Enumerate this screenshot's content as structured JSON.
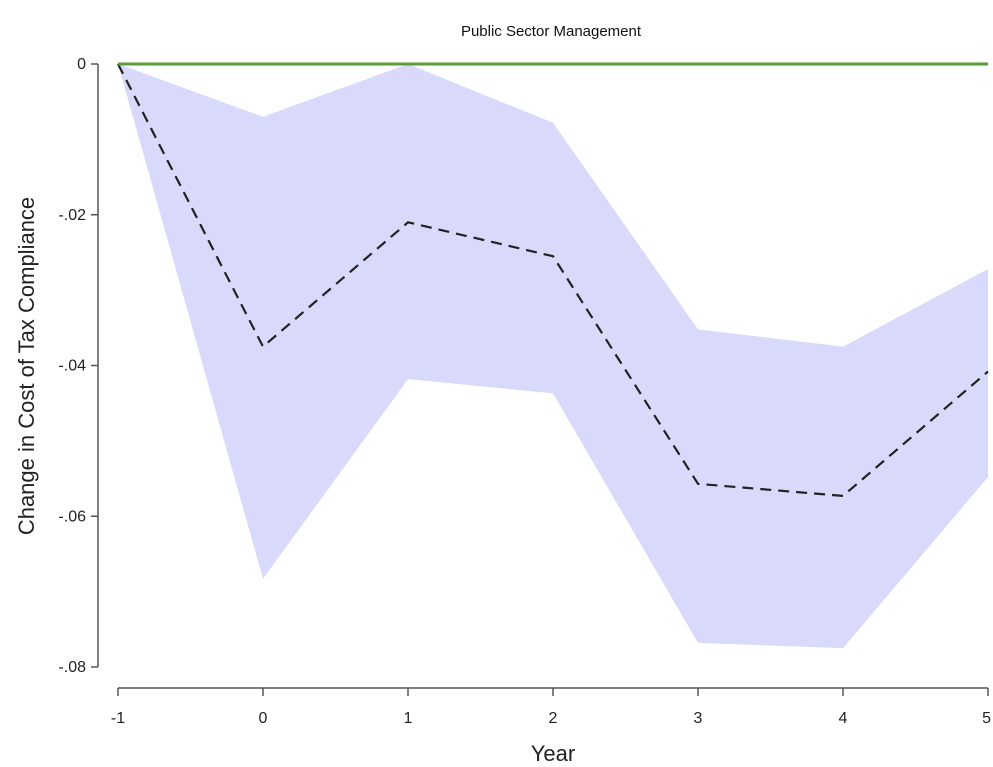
{
  "chart_data": {
    "type": "line",
    "title": "Public Sector Management",
    "xlabel": "Year",
    "ylabel": "Change in Cost of Tax Compliance",
    "x": [
      -1,
      0,
      1,
      2,
      3,
      4,
      5
    ],
    "xlim": [
      -1,
      5
    ],
    "ylim": [
      -0.08,
      0
    ],
    "x_ticks": [
      -1,
      0,
      1,
      2,
      3,
      4,
      5
    ],
    "x_tick_labels": [
      "-1",
      "0",
      "1",
      "2",
      "3",
      "4",
      "5"
    ],
    "y_ticks": [
      0,
      -0.02,
      -0.04,
      -0.06,
      -0.08
    ],
    "y_tick_labels": [
      "0",
      "-.02",
      "-.04",
      "-.06",
      "-.08"
    ],
    "grid": false,
    "series": [
      {
        "style": "dashed",
        "color": "#222222",
        "values": [
          0,
          -0.0375,
          -0.021,
          -0.0255,
          -0.0557,
          -0.0573,
          -0.0408
        ]
      },
      {
        "style": "band",
        "color": "#d9d9fb",
        "upper": [
          0,
          -0.007,
          0,
          -0.0078,
          -0.0352,
          -0.0375,
          -0.0272
        ],
        "lower": [
          0,
          -0.0683,
          -0.0418,
          -0.0437,
          -0.0768,
          -0.0775,
          -0.0548
        ]
      },
      {
        "style": "solid",
        "color": "#5a9a3a",
        "values": [
          0,
          0,
          0,
          0,
          0,
          0,
          0
        ]
      }
    ]
  }
}
